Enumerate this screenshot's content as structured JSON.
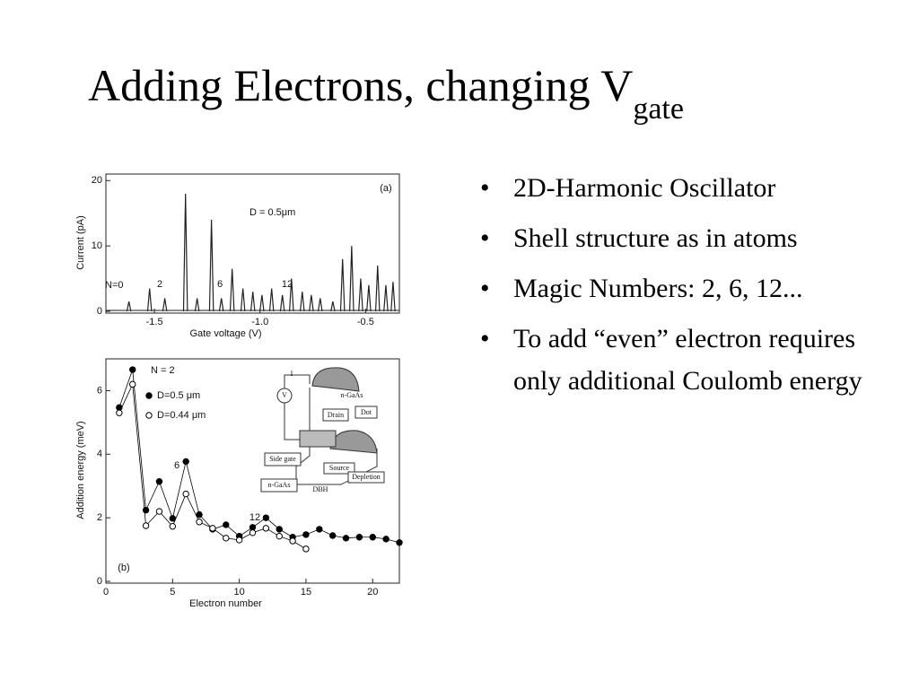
{
  "slide": {
    "title": {
      "text": "Adding Electrons, changing V",
      "subscript": "gate"
    },
    "bullets": [
      "2D-Harmonic Oscillator",
      "Shell structure as in atoms",
      "Magic Numbers: 2, 6, 12...",
      "To add “even”  electron requires only additional Coulomb energy"
    ]
  },
  "chart_data": [
    {
      "type": "spike",
      "x_label": "Gate voltage  (V)",
      "y_label": "Current  (pA)",
      "xlim": [
        -1.73,
        -0.34
      ],
      "ylim": [
        0,
        21
      ],
      "xticks": [
        -1.5,
        {
          "value": -1,
          "label": "-1.0"
        },
        -0.5
      ],
      "yticks": [
        0,
        10,
        20
      ],
      "annotations": [
        "(a)",
        "D = 0.5μm",
        "N=0",
        "2",
        "6",
        "12"
      ],
      "series": [
        {
          "color": "#222222",
          "x": [
            -1.621,
            -1.523,
            -1.451,
            -1.353,
            -1.298,
            -1.23,
            -1.183,
            -1.132,
            -1.081,
            -1.034,
            -0.991,
            -0.945,
            -0.894,
            -0.851,
            -0.8,
            -0.757,
            -0.715,
            -0.655,
            -0.609,
            -0.566,
            -0.523,
            -0.485,
            -0.443,
            -0.404,
            -0.37
          ],
          "values": [
            1.5,
            3.5,
            2,
            18,
            2,
            14,
            2,
            6.5,
            3.5,
            3,
            2.5,
            3.5,
            2.5,
            5,
            3,
            2.5,
            2,
            1.5,
            8,
            10,
            5,
            4,
            7,
            4,
            4.5
          ]
        }
      ]
    },
    {
      "type": "line",
      "x_label": "Electron number",
      "y_label": "Addition energy  (meV)",
      "xlim": [
        0,
        22
      ],
      "ylim": [
        0,
        7
      ],
      "xticks": [
        0,
        5,
        10,
        15,
        20
      ],
      "yticks": [
        0,
        2,
        4,
        6
      ],
      "annotations": [
        "N = 2",
        "6",
        "12",
        "(b)"
      ],
      "inset_labels": [
        "I",
        "V",
        "n-GaAs",
        "Drain",
        "Dot",
        "Side gate",
        "Source",
        "Depletion",
        "n-GaAs",
        "DBH"
      ],
      "series": [
        {
          "name": "D=0.5 μm",
          "color": "#000000",
          "marker": "filled",
          "x": [
            1,
            2,
            3,
            4,
            5,
            6,
            7,
            8,
            9,
            10,
            11,
            12,
            13,
            14,
            15,
            16,
            17,
            18,
            19,
            20,
            21,
            22
          ],
          "values": [
            5.47,
            6.66,
            2.24,
            3.14,
            1.98,
            3.77,
            2.1,
            1.64,
            1.78,
            1.42,
            1.7,
            2.0,
            1.64,
            1.39,
            1.47,
            1.64,
            1.44,
            1.36,
            1.39,
            1.39,
            1.33,
            1.22
          ]
        },
        {
          "name": "D=0.44 μm",
          "color": "#000000",
          "marker": "open",
          "x": [
            1,
            2,
            3,
            4,
            5,
            6,
            7,
            8,
            9,
            10,
            11,
            12,
            13,
            14,
            15
          ],
          "values": [
            5.3,
            6.2,
            1.75,
            2.2,
            1.73,
            2.75,
            1.87,
            1.67,
            1.36,
            1.3,
            1.53,
            1.67,
            1.42,
            1.27,
            1.02
          ]
        }
      ]
    }
  ]
}
